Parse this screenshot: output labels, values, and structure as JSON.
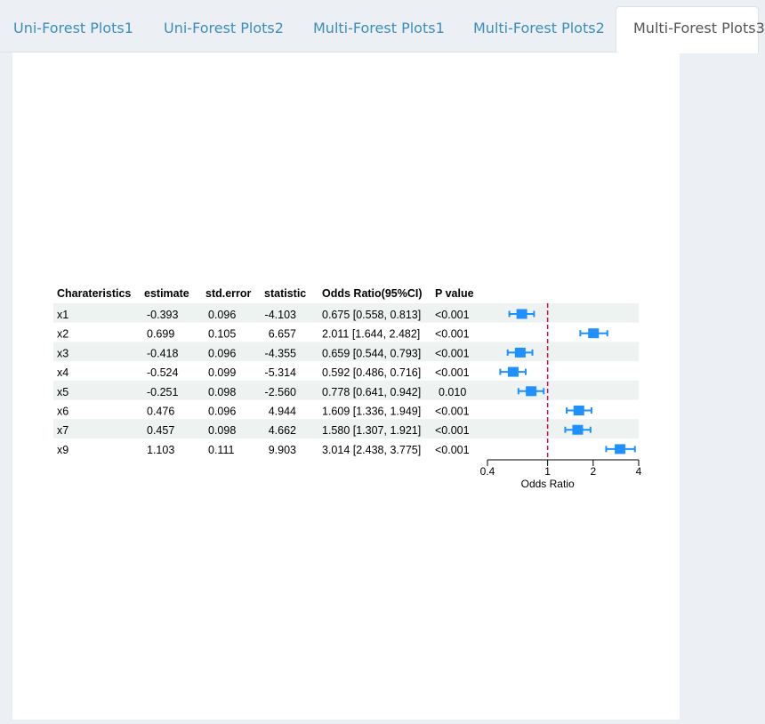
{
  "tabs": [
    {
      "label": "Uni-Forest Plots1",
      "active": false
    },
    {
      "label": "Uni-Forest Plots2",
      "active": false
    },
    {
      "label": "Multi-Forest Plots1",
      "active": false
    },
    {
      "label": "Multi-Forest Plots2",
      "active": false
    },
    {
      "label": "Multi-Forest Plots3",
      "active": true
    }
  ],
  "colors": {
    "tab_link": "#3c8dbc",
    "box": "#1e90ff",
    "ci": "#1e90ff",
    "refline": "#c2185b",
    "stripe": "#eef2f1"
  },
  "chart_data": {
    "type": "forest",
    "columns": [
      "Charateristics",
      "estimate",
      "std.error",
      "statistic",
      "Odds Ratio(95%CI)",
      "P value"
    ],
    "rows": [
      {
        "name": "x1",
        "estimate": "-0.393",
        "std_error": "0.096",
        "statistic": "-4.103",
        "or_ci": "0.675 [0.558, 0.813]",
        "p": "<0.001",
        "or": 0.675,
        "lower": 0.558,
        "upper": 0.813
      },
      {
        "name": "x2",
        "estimate": "0.699",
        "std_error": "0.105",
        "statistic": "6.657",
        "or_ci": "2.011 [1.644, 2.482]",
        "p": "<0.001",
        "or": 2.011,
        "lower": 1.644,
        "upper": 2.482
      },
      {
        "name": "x3",
        "estimate": "-0.418",
        "std_error": "0.096",
        "statistic": "-4.355",
        "or_ci": "0.659 [0.544, 0.793]",
        "p": "<0.001",
        "or": 0.659,
        "lower": 0.544,
        "upper": 0.793
      },
      {
        "name": "x4",
        "estimate": "-0.524",
        "std_error": "0.099",
        "statistic": "-5.314",
        "or_ci": "0.592 [0.486, 0.716]",
        "p": "<0.001",
        "or": 0.592,
        "lower": 0.486,
        "upper": 0.716
      },
      {
        "name": "x5",
        "estimate": "-0.251",
        "std_error": "0.098",
        "statistic": "-2.560",
        "or_ci": "0.778 [0.641, 0.942]",
        "p": "0.010",
        "or": 0.778,
        "lower": 0.641,
        "upper": 0.942
      },
      {
        "name": "x6",
        "estimate": "0.476",
        "std_error": "0.096",
        "statistic": "4.944",
        "or_ci": "1.609 [1.336, 1.949]",
        "p": "<0.001",
        "or": 1.609,
        "lower": 1.336,
        "upper": 1.949
      },
      {
        "name": "x7",
        "estimate": "0.457",
        "std_error": "0.098",
        "statistic": "4.662",
        "or_ci": "1.580 [1.307, 1.921]",
        "p": "<0.001",
        "or": 1.58,
        "lower": 1.307,
        "upper": 1.921
      },
      {
        "name": "x9",
        "estimate": "1.103",
        "std_error": "0.111",
        "statistic": "9.903",
        "or_ci": "3.014 [2.438, 3.775]",
        "p": "<0.001",
        "or": 3.014,
        "lower": 2.438,
        "upper": 3.775
      }
    ],
    "x_axis": {
      "label": "Odds Ratio",
      "scale": "log",
      "range": [
        0.4,
        4
      ],
      "ticks": [
        0.4,
        1,
        2,
        4
      ],
      "tick_labels": [
        "0.4",
        "1",
        "2",
        "4"
      ]
    },
    "reference_line": 1,
    "striped_rows": true
  }
}
